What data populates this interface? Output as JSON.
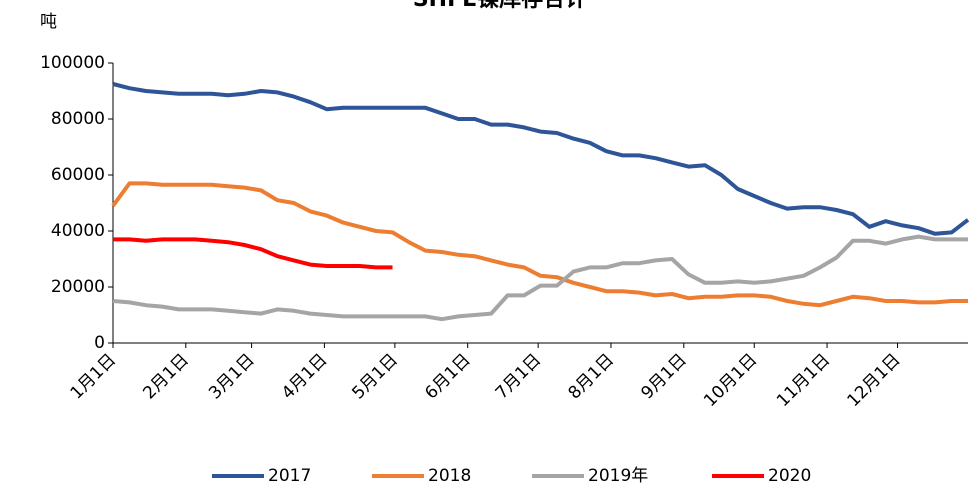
{
  "chart_data": {
    "type": "line",
    "title": "SHFE镍库存合计",
    "y_label": "吨",
    "x": [
      0,
      7,
      14,
      21,
      28,
      35,
      42,
      49,
      56,
      63,
      70,
      77,
      84,
      91,
      98,
      105,
      112,
      119,
      126,
      133,
      140,
      147,
      154,
      161,
      168,
      175,
      182,
      189,
      196,
      203,
      210,
      217,
      224,
      231,
      238,
      245,
      252,
      259,
      266,
      273,
      280,
      287,
      294,
      301,
      308,
      315,
      322,
      329,
      336,
      343,
      350,
      357,
      364
    ],
    "xlim": [
      0,
      364
    ],
    "xticks": [
      {
        "value": 0,
        "label": "1月1日"
      },
      {
        "value": 31,
        "label": "2月1日"
      },
      {
        "value": 59,
        "label": "3月1日"
      },
      {
        "value": 90,
        "label": "4月1日"
      },
      {
        "value": 120,
        "label": "5月1日"
      },
      {
        "value": 151,
        "label": "6月1日"
      },
      {
        "value": 181,
        "label": "7月1日"
      },
      {
        "value": 212,
        "label": "8月1日"
      },
      {
        "value": 243,
        "label": "9月1日"
      },
      {
        "value": 273,
        "label": "10月1日"
      },
      {
        "value": 304,
        "label": "11月1日"
      },
      {
        "value": 334,
        "label": "12月1日"
      }
    ],
    "ylim": [
      0,
      100000
    ],
    "yticks": [
      0,
      20000,
      40000,
      60000,
      80000,
      100000
    ],
    "legend": "bottom",
    "series": [
      {
        "name": "2017",
        "color": "#2e5597",
        "values": [
          92500,
          91000,
          90000,
          89500,
          89000,
          89000,
          89000,
          88500,
          89000,
          90000,
          89500,
          88000,
          86000,
          83500,
          84000,
          84000,
          84000,
          84000,
          84000,
          84000,
          82000,
          80000,
          80000,
          78000,
          78000,
          77000,
          75500,
          75000,
          73000,
          71500,
          68500,
          67000,
          67000,
          66000,
          64500,
          63000,
          63500,
          60000,
          55000,
          52500,
          50000,
          48000,
          48500,
          48500,
          47500,
          46000,
          41500,
          43500,
          42000,
          41000,
          39000,
          39500,
          44000
        ]
      },
      {
        "name": "2018",
        "color": "#ed7d31",
        "values": [
          49000,
          57000,
          57000,
          56500,
          56500,
          56500,
          56500,
          56000,
          55500,
          54500,
          51000,
          50000,
          47000,
          45500,
          43000,
          41500,
          40000,
          39500,
          36000,
          33000,
          32500,
          31500,
          31000,
          29500,
          28000,
          27000,
          24000,
          23500,
          21500,
          20000,
          18500,
          18500,
          18000,
          17000,
          17500,
          16000,
          16500,
          16500,
          17000,
          17000,
          16500,
          15000,
          14000,
          13500,
          15000,
          16500,
          16000,
          15000,
          15000,
          14500,
          14500,
          15000,
          15000
        ]
      },
      {
        "name": "2019年",
        "color": "#a5a5a5",
        "values": [
          15000,
          14500,
          13500,
          13000,
          12000,
          12000,
          12000,
          11500,
          11000,
          10500,
          12000,
          11500,
          10500,
          10000,
          9500,
          9500,
          9500,
          9500,
          9500,
          9500,
          8500,
          9500,
          10000,
          10500,
          17000,
          17000,
          20500,
          20500,
          25500,
          27000,
          27000,
          28500,
          28500,
          29500,
          30000,
          24500,
          21500,
          21500,
          22000,
          21500,
          22000,
          23000,
          24000,
          27000,
          30500,
          36500,
          36500,
          35500,
          37000,
          38000,
          37000,
          37000,
          37000
        ]
      },
      {
        "name": "2020",
        "color": "#ff0000",
        "values": [
          37000,
          37000,
          36500,
          37000,
          37000,
          37000,
          36500,
          36000,
          35000,
          33500,
          31000,
          29500,
          28000,
          27500,
          27500,
          27500,
          27000,
          27000,
          null,
          null,
          null,
          null,
          null,
          null,
          null,
          null,
          null,
          null,
          null,
          null,
          null,
          null,
          null,
          null,
          null,
          null,
          null,
          null,
          null,
          null,
          null,
          null,
          null,
          null,
          null,
          null,
          null,
          null,
          null,
          null,
          null,
          null,
          null
        ]
      }
    ]
  }
}
